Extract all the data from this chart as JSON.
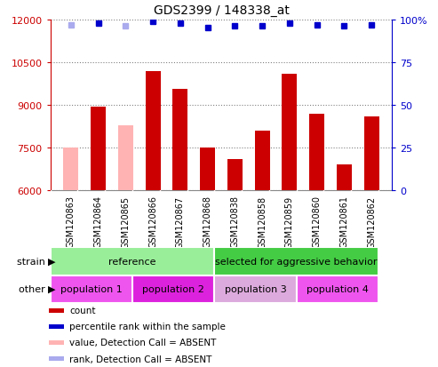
{
  "title": "GDS2399 / 148338_at",
  "samples": [
    "GSM120863",
    "GSM120864",
    "GSM120865",
    "GSM120866",
    "GSM120867",
    "GSM120868",
    "GSM120838",
    "GSM120858",
    "GSM120859",
    "GSM120860",
    "GSM120861",
    "GSM120862"
  ],
  "counts": [
    7500,
    8950,
    8280,
    10200,
    9550,
    7500,
    7100,
    8100,
    10100,
    8700,
    6900,
    8600
  ],
  "absent_flags": [
    true,
    false,
    true,
    false,
    false,
    false,
    false,
    false,
    false,
    false,
    false,
    false
  ],
  "percentile_ranks": [
    97,
    98,
    96,
    99,
    98,
    95,
    96,
    96,
    98,
    97,
    96,
    97
  ],
  "absent_rank_flags": [
    true,
    false,
    true,
    false,
    false,
    false,
    false,
    false,
    false,
    false,
    false,
    false
  ],
  "ylim_left": [
    6000,
    12000
  ],
  "ylim_right": [
    0,
    100
  ],
  "yticks_left": [
    6000,
    7500,
    9000,
    10500,
    12000
  ],
  "yticks_right": [
    0,
    25,
    50,
    75,
    100
  ],
  "bar_color_present": "#cc0000",
  "bar_color_absent": "#ffb3b3",
  "dot_color_present": "#0000cc",
  "dot_color_absent": "#aaaaee",
  "bar_width": 0.55,
  "strain_row": [
    {
      "label": "reference",
      "start": 0,
      "end": 6,
      "color": "#99ee99"
    },
    {
      "label": "selected for aggressive behavior",
      "start": 6,
      "end": 12,
      "color": "#44cc44"
    }
  ],
  "other_row": [
    {
      "label": "population 1",
      "start": 0,
      "end": 3,
      "color": "#ee55ee"
    },
    {
      "label": "population 2",
      "start": 3,
      "end": 6,
      "color": "#dd22dd"
    },
    {
      "label": "population 3",
      "start": 6,
      "end": 9,
      "color": "#ddaadd"
    },
    {
      "label": "population 4",
      "start": 9,
      "end": 12,
      "color": "#ee55ee"
    }
  ],
  "tick_area_color": "#cccccc",
  "left_tick_color": "#cc0000",
  "right_tick_color": "#0000cc",
  "legend_items": [
    {
      "color": "#cc0000",
      "label": "count"
    },
    {
      "color": "#0000cc",
      "label": "percentile rank within the sample"
    },
    {
      "color": "#ffb3b3",
      "label": "value, Detection Call = ABSENT"
    },
    {
      "color": "#aaaaee",
      "label": "rank, Detection Call = ABSENT"
    }
  ]
}
